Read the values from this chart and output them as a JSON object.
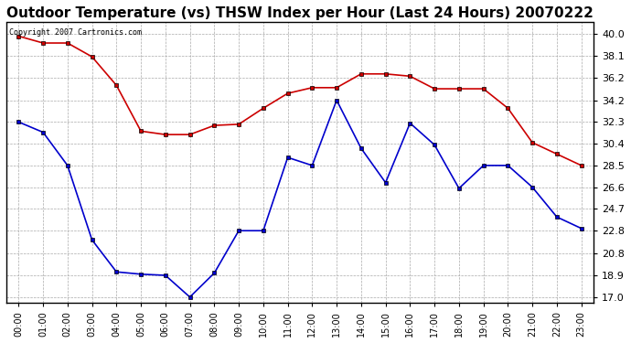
{
  "title": "Outdoor Temperature (vs) THSW Index per Hour (Last 24 Hours) 20070222",
  "copyright_text": "Copyright 2007 Cartronics.com",
  "hours": [
    "00:00",
    "01:00",
    "02:00",
    "03:00",
    "04:00",
    "05:00",
    "06:00",
    "07:00",
    "08:00",
    "09:00",
    "10:00",
    "11:00",
    "12:00",
    "13:00",
    "14:00",
    "15:00",
    "16:00",
    "17:00",
    "18:00",
    "19:00",
    "20:00",
    "21:00",
    "22:00",
    "23:00"
  ],
  "red_data": [
    39.8,
    39.2,
    39.2,
    38.0,
    35.5,
    31.5,
    31.2,
    31.2,
    32.0,
    32.1,
    33.5,
    34.8,
    35.3,
    35.3,
    36.5,
    36.5,
    36.3,
    35.2,
    35.2,
    35.2,
    33.5,
    30.5,
    29.5,
    28.5
  ],
  "blue_data": [
    32.3,
    31.4,
    28.5,
    22.0,
    19.2,
    19.0,
    18.9,
    17.0,
    19.1,
    22.8,
    22.8,
    29.2,
    28.5,
    34.2,
    30.0,
    27.0,
    32.2,
    30.3,
    26.5,
    28.5,
    28.5,
    26.6,
    24.0,
    23.0
  ],
  "red_color": "#cc0000",
  "blue_color": "#0000cc",
  "marker": "s",
  "marker_size": 3,
  "bg_color": "#ffffff",
  "plot_bg_color": "#ffffff",
  "grid_color": "#aaaaaa",
  "title_fontsize": 11,
  "copyright_fontsize": 6,
  "ytick_fontsize": 8,
  "xtick_fontsize": 7,
  "yticks": [
    17.0,
    18.9,
    20.8,
    22.8,
    24.7,
    26.6,
    28.5,
    30.4,
    32.3,
    34.2,
    36.2,
    38.1,
    40.0
  ],
  "ylim": [
    16.5,
    41.0
  ]
}
